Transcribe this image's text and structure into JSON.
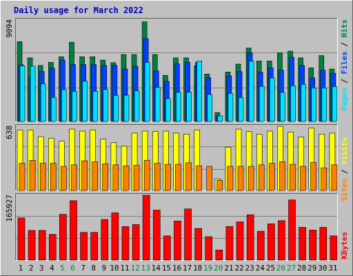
{
  "title": "Daily usage for March 2022",
  "colors": {
    "background": "#c0c0c0",
    "title": "#0000c0",
    "hits": "#008040",
    "files": "#0040ff",
    "pages": "#00e0ff",
    "visits": "#ffff00",
    "sites": "#ff8000",
    "kbytes": "#ff0000",
    "weekend_label": "#008040",
    "weekday_label": "#000000"
  },
  "chart_data": [
    {
      "type": "bar",
      "name": "hits-files-pages",
      "scale_label": "9094",
      "ymax": 9094,
      "grid": true,
      "legend": "right",
      "legend_items": [
        "Pages",
        "Files",
        "Hits"
      ],
      "categories": [
        "1",
        "2",
        "3",
        "4",
        "5",
        "6",
        "7",
        "8",
        "9",
        "10",
        "11",
        "12",
        "13",
        "14",
        "15",
        "16",
        "17",
        "18",
        "19",
        "20",
        "21",
        "22",
        "23",
        "24",
        "25",
        "26",
        "27",
        "28",
        "29",
        "30",
        "31"
      ],
      "series": [
        {
          "name": "Hits",
          "values": [
            7150,
            5700,
            5020,
            5300,
            5800,
            7100,
            5800,
            5800,
            5500,
            5270,
            6000,
            6000,
            8930,
            6000,
            4130,
            5700,
            5700,
            5000,
            4250,
            800,
            4430,
            5140,
            6580,
            5420,
            5420,
            6150,
            6300,
            5700,
            4800,
            5900,
            4700
          ]
        },
        {
          "name": "Files",
          "values": [
            5080,
            4080,
            4480,
            4780,
            5500,
            5100,
            5100,
            5100,
            5030,
            5020,
            4700,
            4940,
            7430,
            4530,
            3590,
            5150,
            5300,
            5300,
            3930,
            500,
            4080,
            4480,
            6160,
            4420,
            4800,
            4590,
            5750,
            5020,
            3900,
            4590,
            4320
          ]
        },
        {
          "name": "Pages",
          "values": [
            4980,
            4950,
            3370,
            2150,
            2850,
            2700,
            3600,
            2700,
            2860,
            2340,
            2350,
            2750,
            5300,
            3060,
            2050,
            2620,
            2620,
            5420,
            2420,
            500,
            2520,
            2150,
            5400,
            3150,
            3900,
            2600,
            3200,
            3330,
            3000,
            3000,
            3130
          ]
        }
      ]
    },
    {
      "type": "bar",
      "name": "visits-sites",
      "scale_label": "638",
      "ymax": 638,
      "grid": true,
      "legend": "right",
      "legend_items": [
        "Sites",
        "Visits"
      ],
      "categories": [
        "1",
        "2",
        "3",
        "4",
        "5",
        "6",
        "7",
        "8",
        "9",
        "10",
        "11",
        "12",
        "13",
        "14",
        "15",
        "16",
        "17",
        "18",
        "19",
        "20",
        "21",
        "22",
        "23",
        "24",
        "25",
        "26",
        "27",
        "28",
        "29",
        "30",
        "31"
      ],
      "series": [
        {
          "name": "Visits",
          "values": [
            600,
            600,
            535,
            520,
            490,
            610,
            590,
            600,
            510,
            475,
            440,
            570,
            590,
            585,
            590,
            570,
            560,
            600,
            0,
            115,
            430,
            610,
            585,
            560,
            590,
            638,
            580,
            530,
            620,
            560,
            570
          ]
        },
        {
          "name": "Sites",
          "values": [
            270,
            300,
            270,
            270,
            240,
            255,
            295,
            285,
            265,
            255,
            245,
            250,
            300,
            270,
            260,
            260,
            275,
            245,
            240,
            100,
            240,
            240,
            240,
            255,
            270,
            285,
            260,
            240,
            280,
            225,
            255
          ]
        }
      ]
    },
    {
      "type": "bar",
      "name": "kbytes",
      "scale_label": "165927",
      "ymax": 165927,
      "grid": true,
      "legend": "right",
      "legend_items": [
        "KBytes"
      ],
      "categories": [
        "1",
        "2",
        "3",
        "4",
        "5",
        "6",
        "7",
        "8",
        "9",
        "10",
        "11",
        "12",
        "13",
        "14",
        "15",
        "16",
        "17",
        "18",
        "19",
        "20",
        "21",
        "22",
        "23",
        "24",
        "25",
        "26",
        "27",
        "28",
        "29",
        "30",
        "31"
      ],
      "series": [
        {
          "name": "KBytes",
          "values": [
            108000,
            76000,
            76000,
            66000,
            117000,
            152000,
            71000,
            71000,
            104000,
            121000,
            86000,
            91000,
            165927,
            128000,
            62000,
            100000,
            131000,
            81000,
            60000,
            26000,
            86000,
            98000,
            116000,
            74000,
            93000,
            101000,
            154000,
            84000,
            77000,
            84000,
            62000
          ]
        }
      ]
    }
  ],
  "weekend_days": [
    5,
    6,
    12,
    13,
    19,
    20,
    26,
    27
  ]
}
